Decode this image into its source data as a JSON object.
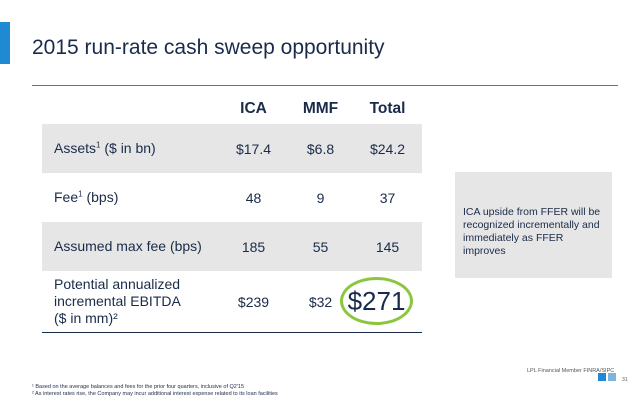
{
  "slide": {
    "title": "2015 run-rate cash sweep opportunity",
    "accent_color": "#1f8ad1",
    "highlight_color": "#8cc63f"
  },
  "table": {
    "headers": [
      "ICA",
      "MMF",
      "Total"
    ],
    "rows": [
      {
        "label": "Assets",
        "sup": "1",
        "label_suffix": " ($ in bn)",
        "ica": "$17.4",
        "mmf": "$6.8",
        "total": "$24.2"
      },
      {
        "label": "Fee",
        "sup": "1",
        "label_suffix": " (bps)",
        "ica": "48",
        "mmf": "9",
        "total": "37"
      },
      {
        "label": "Assumed max fee (bps)",
        "ica": "185",
        "mmf": "55",
        "total": "145"
      },
      {
        "label_line1": "Potential annualized",
        "label_line2": "incremental EBITDA",
        "label_line3": "($ in mm)²",
        "ica": "$239",
        "mmf": "$32",
        "total": "$271"
      }
    ]
  },
  "callout": {
    "text": "ICA upside from FFER will be recognized incrementally and immediately as FFER improves"
  },
  "footer": {
    "brand": "LPL Financial  Member FINRA/SIPC",
    "page": "31",
    "footnote1": "¹ Based on the average balances and fees for the prior four quarters, inclusive of Q2'15",
    "footnote2": "² As interest rates rise, the Company may incur additional interest expense related to its loan facilities"
  }
}
